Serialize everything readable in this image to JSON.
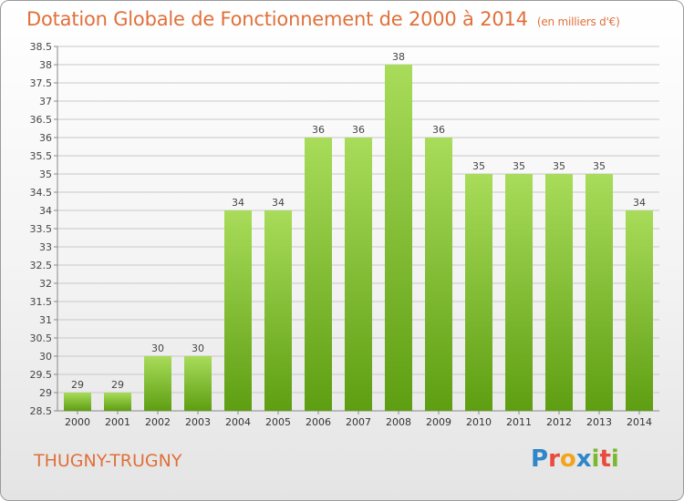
{
  "header": {
    "title": "Dotation Globale de Fonctionnement de 2000 à 2014",
    "unit": "(en milliers d'€)"
  },
  "footer": {
    "commune": "THUGNY-TRUGNY",
    "brand": "Proxiti"
  },
  "colors": {
    "title": "#e0703a",
    "bar_top": "#a8dc5a",
    "bar_bottom": "#5e9e12",
    "grid": "#c8c8c8"
  },
  "chart_data": {
    "type": "bar",
    "title": "Dotation Globale de Fonctionnement de 2000 à 2014",
    "subtitle": "(en milliers d'€)",
    "categories": [
      "2000",
      "2001",
      "2002",
      "2003",
      "2004",
      "2005",
      "2006",
      "2007",
      "2008",
      "2009",
      "2010",
      "2011",
      "2012",
      "2013",
      "2014"
    ],
    "values": [
      29,
      29,
      30,
      30,
      34,
      34,
      36,
      36,
      38,
      36,
      35,
      35,
      35,
      35,
      34
    ],
    "ylim": [
      28.5,
      38.5
    ],
    "yticks": [
      28.5,
      29,
      29.5,
      30,
      30.5,
      31,
      31.5,
      32,
      32.5,
      33,
      33.5,
      34,
      34.5,
      35,
      35.5,
      36,
      36.5,
      37,
      37.5,
      38,
      38.5
    ],
    "ytick_labels": [
      "28.5",
      "29",
      "29.5",
      "30",
      "30.5",
      "31",
      "31.5",
      "32",
      "32.5",
      "33",
      "33.5",
      "34",
      "34.5",
      "35",
      "35.5",
      "36",
      "36.5",
      "37",
      "37.5",
      "38",
      "38.5"
    ],
    "grid": true,
    "xlabel": "",
    "ylabel": ""
  }
}
